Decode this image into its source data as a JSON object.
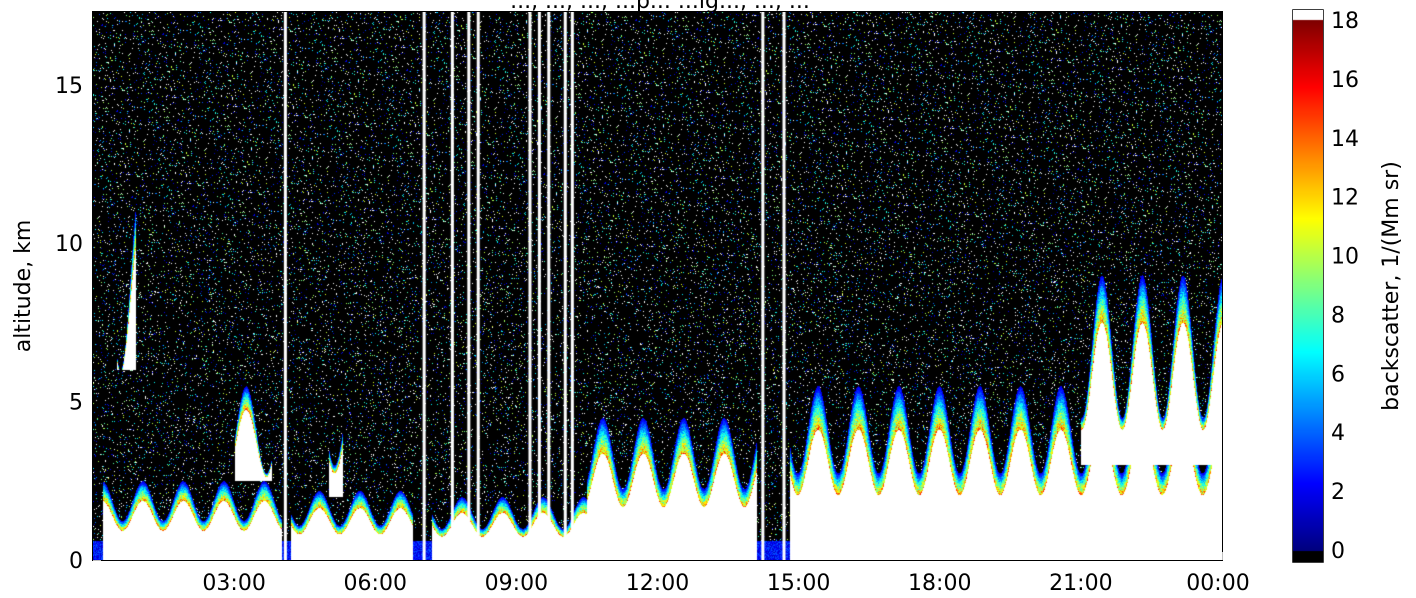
{
  "chart_data": {
    "type": "heatmap",
    "title": "..., ..., ..., ...p... ...ig..., ..., ...",
    "ylabel": "altitude, km",
    "xlabel": "",
    "x_tick_labels": [
      "03:00",
      "06:00",
      "09:00",
      "12:00",
      "15:00",
      "18:00",
      "21:00",
      "00:00"
    ],
    "x_ticks_hours": [
      3,
      6,
      9,
      12,
      15,
      18,
      21,
      24
    ],
    "xlim_hours": [
      0,
      24
    ],
    "y_ticks": [
      0,
      5,
      10,
      15
    ],
    "ylim": [
      0,
      17.3
    ],
    "colorbar": {
      "label": "backscatter, 1/(Mm sr)",
      "ticks": [
        0,
        2,
        4,
        6,
        8,
        10,
        12,
        14,
        16,
        18
      ],
      "range": [
        0,
        18
      ],
      "colormap": "jet",
      "under_color": "#000000",
      "over_color": "#ffffff"
    },
    "no_data_columns_hours": [
      4.1,
      7.05,
      7.65,
      8.0,
      8.2,
      9.3,
      9.5,
      9.7,
      10.05,
      10.2,
      14.25,
      14.7
    ],
    "cloud_regions": [
      {
        "x_hours": [
          0.5,
          0.9
        ],
        "altitude_km": [
          6.0,
          12.0
        ],
        "peak_value": 18
      },
      {
        "x_hours": [
          0.2,
          4.0
        ],
        "altitude_km": [
          0.0,
          2.5
        ],
        "peak_value": 18
      },
      {
        "x_hours": [
          3.0,
          3.8
        ],
        "altitude_km": [
          2.5,
          5.5
        ],
        "peak_value": 18
      },
      {
        "x_hours": [
          4.2,
          6.8
        ],
        "altitude_km": [
          0.0,
          2.2
        ],
        "peak_value": 18
      },
      {
        "x_hours": [
          5.0,
          5.3
        ],
        "altitude_km": [
          2.0,
          6.0
        ],
        "peak_value": 18
      },
      {
        "x_hours": [
          7.2,
          10.5
        ],
        "altitude_km": [
          0.0,
          2.0
        ],
        "peak_value": 18
      },
      {
        "x_hours": [
          10.5,
          14.1
        ],
        "altitude_km": [
          0.0,
          4.5
        ],
        "peak_value": 18
      },
      {
        "x_hours": [
          14.8,
          24.0
        ],
        "altitude_km": [
          0.0,
          5.5
        ],
        "peak_value": 18
      },
      {
        "x_hours": [
          21.0,
          24.0
        ],
        "altitude_km": [
          3.0,
          9.0
        ],
        "peak_value": 18
      }
    ],
    "grid": false
  }
}
